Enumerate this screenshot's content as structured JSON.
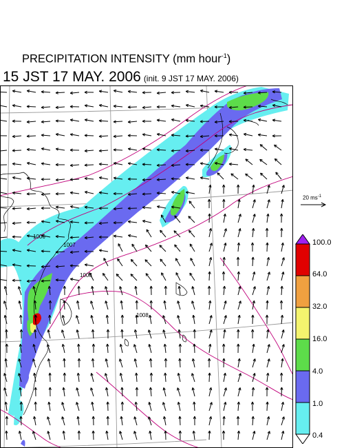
{
  "title": {
    "main": "PRECIPITATION INTENSITY (mm hour",
    "main_exp": "-1",
    "main_end": ")",
    "datetime": "15 JST 17 MAY. 2006",
    "init": "(init. 9 JST 17 MAY. 2006)"
  },
  "reference_vector": {
    "label": "20 ms",
    "label_exp": "-1"
  },
  "colorbar": {
    "labels": [
      "100.0",
      "64.0",
      "32.0",
      "16.0",
      "4.0",
      "1.0",
      "0.4"
    ],
    "colors": [
      "#e00000",
      "#f0a040",
      "#f4f46e",
      "#5ddc4a",
      "#6a6af0",
      "#66eef0"
    ],
    "top_triangle_color": "#a020f0",
    "bottom_triangle_color": "#ffffff"
  },
  "map": {
    "precipitation_colors": {
      "light": "#66eef0",
      "moderate": "#6a6af0",
      "heavy": "#5ddc4a",
      "very_heavy": "#f4f46e",
      "extreme": "#e00000"
    },
    "isobar_color": "#c0007a",
    "isobar_labels": [
      "1006",
      "1007",
      "1008",
      "1008"
    ],
    "coastline_color": "#000000",
    "gridline_color": "#999999"
  }
}
